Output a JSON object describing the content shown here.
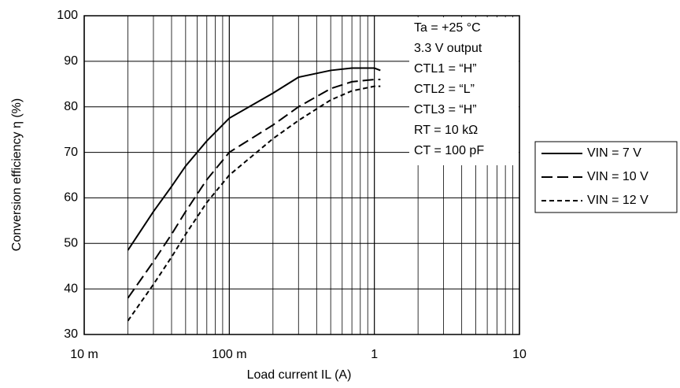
{
  "chart_data": {
    "type": "line",
    "xlabel": "Load current IL (A)",
    "ylabel": "Conversion efficiency η (%)",
    "x": [
      0.02,
      0.03,
      0.04,
      0.05,
      0.07,
      0.1,
      0.2,
      0.3,
      0.5,
      0.7,
      1,
      1.1
    ],
    "series": [
      {
        "name": "VIN = 7 V",
        "color": "#000000",
        "style": "solid",
        "values": [
          48.5,
          57,
          62.5,
          67,
          72.5,
          77.5,
          83,
          86.5,
          88,
          88.5,
          88.5,
          88
        ]
      },
      {
        "name": "VIN = 10 V",
        "color": "#000000",
        "style": "dashed",
        "values": [
          38,
          46,
          52,
          57,
          64,
          70,
          76,
          80,
          84,
          85.5,
          86,
          86
        ]
      },
      {
        "name": "VIN = 12 V",
        "color": "#000000",
        "style": "dotted",
        "values": [
          33,
          41,
          47,
          52,
          59,
          65,
          73,
          77,
          81.5,
          83.5,
          84.5,
          84.5
        ]
      }
    ],
    "xscale": "log",
    "xlim": [
      0.01,
      10
    ],
    "xticks": [
      {
        "value": 0.01,
        "label": "10 m"
      },
      {
        "value": 0.1,
        "label": "100 m"
      },
      1,
      10
    ],
    "ylim": [
      30,
      100
    ],
    "yticks": [
      30,
      40,
      50,
      60,
      70,
      80,
      90,
      100
    ],
    "grid": true,
    "legend": "right",
    "annotations": [
      "Ta = +25 °C",
      "3.3 V output",
      "CTL1 = “H”",
      "CTL2 = “L”",
      "CTL3 = “H”",
      "RT = 10 kΩ",
      "CT = 100 pF"
    ]
  }
}
